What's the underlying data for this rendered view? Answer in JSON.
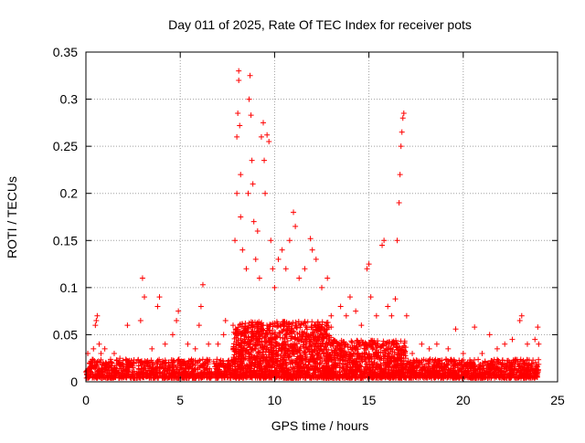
{
  "chart_data": {
    "type": "scatter",
    "title": "Day 011 of 2025, Rate Of TEC Index for receiver pots",
    "xlabel": "GPS time / hours",
    "ylabel": "ROTI / TECUs",
    "xlim": [
      0,
      25
    ],
    "ylim": [
      0,
      0.35
    ],
    "x_ticks": [
      0,
      5,
      10,
      15,
      20,
      25
    ],
    "y_ticks": [
      0,
      0.05,
      0.1,
      0.15,
      0.2,
      0.25,
      0.3,
      0.35
    ],
    "grid": true,
    "marker": "+",
    "series": [
      {
        "color": "#ff0000",
        "points": [
          [
            0.1,
            0.03
          ],
          [
            0.2,
            0.02
          ],
          [
            0.3,
            0.015
          ],
          [
            0.4,
            0.035
          ],
          [
            0.5,
            0.06
          ],
          [
            0.55,
            0.065
          ],
          [
            0.6,
            0.07
          ],
          [
            0.7,
            0.04
          ],
          [
            0.8,
            0.03
          ],
          [
            1.0,
            0.035
          ],
          [
            1.2,
            0.02
          ],
          [
            1.5,
            0.03
          ],
          [
            1.8,
            0.025
          ],
          [
            2.2,
            0.06
          ],
          [
            2.5,
            0.02
          ],
          [
            2.9,
            0.065
          ],
          [
            3.0,
            0.11
          ],
          [
            3.1,
            0.09
          ],
          [
            3.5,
            0.035
          ],
          [
            3.8,
            0.08
          ],
          [
            3.9,
            0.09
          ],
          [
            4.2,
            0.04
          ],
          [
            4.6,
            0.05
          ],
          [
            4.8,
            0.065
          ],
          [
            4.9,
            0.075
          ],
          [
            5.4,
            0.04
          ],
          [
            5.8,
            0.035
          ],
          [
            6.0,
            0.06
          ],
          [
            6.1,
            0.08
          ],
          [
            6.2,
            0.103
          ],
          [
            6.5,
            0.04
          ],
          [
            7.0,
            0.04
          ],
          [
            7.3,
            0.05
          ],
          [
            7.4,
            0.065
          ],
          [
            7.8,
            0.06
          ],
          [
            7.9,
            0.15
          ],
          [
            8.0,
            0.2
          ],
          [
            8.0,
            0.26
          ],
          [
            8.05,
            0.285
          ],
          [
            8.1,
            0.32
          ],
          [
            8.1,
            0.33
          ],
          [
            8.15,
            0.272
          ],
          [
            8.2,
            0.22
          ],
          [
            8.2,
            0.175
          ],
          [
            8.3,
            0.14
          ],
          [
            8.5,
            0.12
          ],
          [
            8.6,
            0.2
          ],
          [
            8.65,
            0.3
          ],
          [
            8.7,
            0.325
          ],
          [
            8.75,
            0.283
          ],
          [
            8.8,
            0.235
          ],
          [
            8.85,
            0.21
          ],
          [
            8.9,
            0.17
          ],
          [
            9.0,
            0.13
          ],
          [
            9.1,
            0.16
          ],
          [
            9.2,
            0.11
          ],
          [
            9.3,
            0.26
          ],
          [
            9.4,
            0.275
          ],
          [
            9.45,
            0.235
          ],
          [
            9.5,
            0.2
          ],
          [
            9.6,
            0.262
          ],
          [
            9.7,
            0.255
          ],
          [
            9.8,
            0.15
          ],
          [
            9.9,
            0.12
          ],
          [
            10.0,
            0.1
          ],
          [
            10.2,
            0.13
          ],
          [
            10.4,
            0.14
          ],
          [
            10.6,
            0.12
          ],
          [
            10.8,
            0.15
          ],
          [
            11.0,
            0.18
          ],
          [
            11.1,
            0.165
          ],
          [
            11.3,
            0.11
          ],
          [
            11.6,
            0.12
          ],
          [
            11.9,
            0.152
          ],
          [
            12.0,
            0.14
          ],
          [
            12.2,
            0.13
          ],
          [
            12.5,
            0.1
          ],
          [
            12.8,
            0.11
          ],
          [
            13.0,
            0.07
          ],
          [
            13.5,
            0.08
          ],
          [
            13.8,
            0.07
          ],
          [
            14.0,
            0.09
          ],
          [
            14.3,
            0.075
          ],
          [
            14.6,
            0.06
          ],
          [
            14.9,
            0.12
          ],
          [
            15.0,
            0.125
          ],
          [
            15.1,
            0.09
          ],
          [
            15.4,
            0.07
          ],
          [
            15.7,
            0.145
          ],
          [
            15.8,
            0.15
          ],
          [
            16.0,
            0.08
          ],
          [
            16.2,
            0.07
          ],
          [
            16.4,
            0.088
          ],
          [
            16.5,
            0.15
          ],
          [
            16.6,
            0.19
          ],
          [
            16.65,
            0.22
          ],
          [
            16.7,
            0.25
          ],
          [
            16.75,
            0.265
          ],
          [
            16.8,
            0.28
          ],
          [
            16.85,
            0.285
          ],
          [
            17.0,
            0.07
          ],
          [
            17.3,
            0.03
          ],
          [
            17.8,
            0.04
          ],
          [
            18.2,
            0.035
          ],
          [
            18.6,
            0.04
          ],
          [
            19.2,
            0.035
          ],
          [
            19.6,
            0.056
          ],
          [
            20.0,
            0.03
          ],
          [
            20.6,
            0.058
          ],
          [
            21.0,
            0.03
          ],
          [
            21.4,
            0.05
          ],
          [
            21.8,
            0.035
          ],
          [
            22.2,
            0.04
          ],
          [
            22.6,
            0.045
          ],
          [
            23.0,
            0.065
          ],
          [
            23.1,
            0.07
          ],
          [
            23.4,
            0.04
          ],
          [
            23.8,
            0.045
          ],
          [
            24.0,
            0.04
          ],
          [
            23.95,
            0.058
          ]
        ]
      }
    ],
    "dense_band": {
      "color": "#ff0000",
      "note_x": [
        0,
        24
      ],
      "segments": [
        {
          "x0": 0.0,
          "x1": 7.8,
          "ymin": 0.0,
          "ymax": 0.02,
          "count": 900
        },
        {
          "x0": 7.8,
          "x1": 13.0,
          "ymin": 0.0,
          "ymax": 0.06,
          "count": 1400
        },
        {
          "x0": 13.0,
          "x1": 17.0,
          "ymin": 0.0,
          "ymax": 0.04,
          "count": 800
        },
        {
          "x0": 17.0,
          "x1": 24.0,
          "ymin": 0.0,
          "ymax": 0.02,
          "count": 900
        }
      ]
    }
  }
}
